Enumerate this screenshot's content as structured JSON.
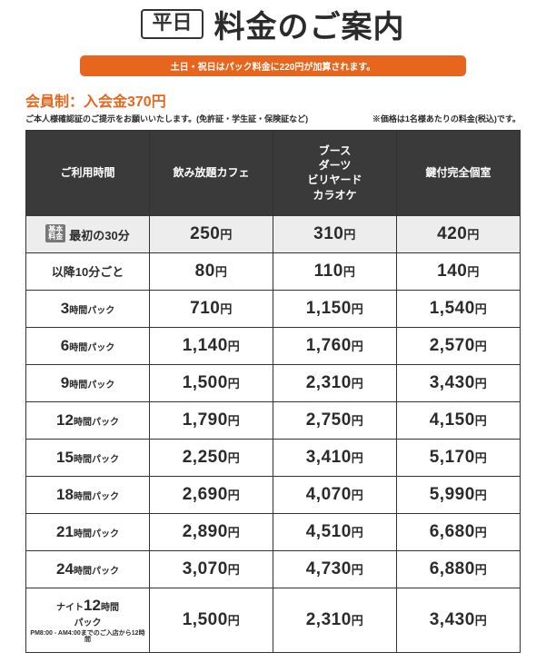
{
  "header": {
    "weekday_badge": "平日",
    "main_title": "料金のご案内",
    "orange_notice": "土日・祝日はパック料金に220円が加算されます。"
  },
  "member": {
    "line": "会員制：入会金370円",
    "id_note": "ご本人様確認証のご提示をお願いいたします。(免許証・学生証・保険証など)",
    "tax_note": "※価格は1名様あたりの料金(税込)です。"
  },
  "table": {
    "headers": {
      "time": "ご利用時間",
      "cafe": "飲み放題カフェ",
      "booth": "ブース\nダーツ\nビリヤード\nカラオケ",
      "private": "鍵付完全個室"
    },
    "rows": [
      {
        "label_badge": "基本\n料金",
        "label_main": "最初の30分",
        "cafe": "250",
        "booth": "310",
        "private": "420"
      },
      {
        "label_main": "以降10分ごと",
        "cafe": "80",
        "booth": "110",
        "private": "140"
      },
      {
        "label_big": "3",
        "label_suffix": "時間パック",
        "cafe": "710",
        "booth": "1,150",
        "private": "1,540"
      },
      {
        "label_big": "6",
        "label_suffix": "時間パック",
        "cafe": "1,140",
        "booth": "1,760",
        "private": "2,570"
      },
      {
        "label_big": "9",
        "label_suffix": "時間パック",
        "cafe": "1,500",
        "booth": "2,310",
        "private": "3,430"
      },
      {
        "label_big": "12",
        "label_suffix": "時間パック",
        "cafe": "1,790",
        "booth": "2,750",
        "private": "4,150"
      },
      {
        "label_big": "15",
        "label_suffix": "時間パック",
        "cafe": "2,250",
        "booth": "3,410",
        "private": "5,170"
      },
      {
        "label_big": "18",
        "label_suffix": "時間パック",
        "cafe": "2,690",
        "booth": "4,070",
        "private": "5,990"
      },
      {
        "label_big": "21",
        "label_suffix": "時間パック",
        "cafe": "2,890",
        "booth": "4,510",
        "private": "6,680"
      },
      {
        "label_big": "24",
        "label_suffix": "時間パック",
        "cafe": "3,070",
        "booth": "4,730",
        "private": "6,880"
      },
      {
        "label_prefix": "ナイト",
        "label_big": "12",
        "label_suffix": "時間\nパック",
        "label_tiny": "PM8:00 - AM4:00までのご入店から12時間",
        "cafe": "1,500",
        "booth": "2,310",
        "private": "3,430"
      }
    ],
    "yen": "円"
  }
}
